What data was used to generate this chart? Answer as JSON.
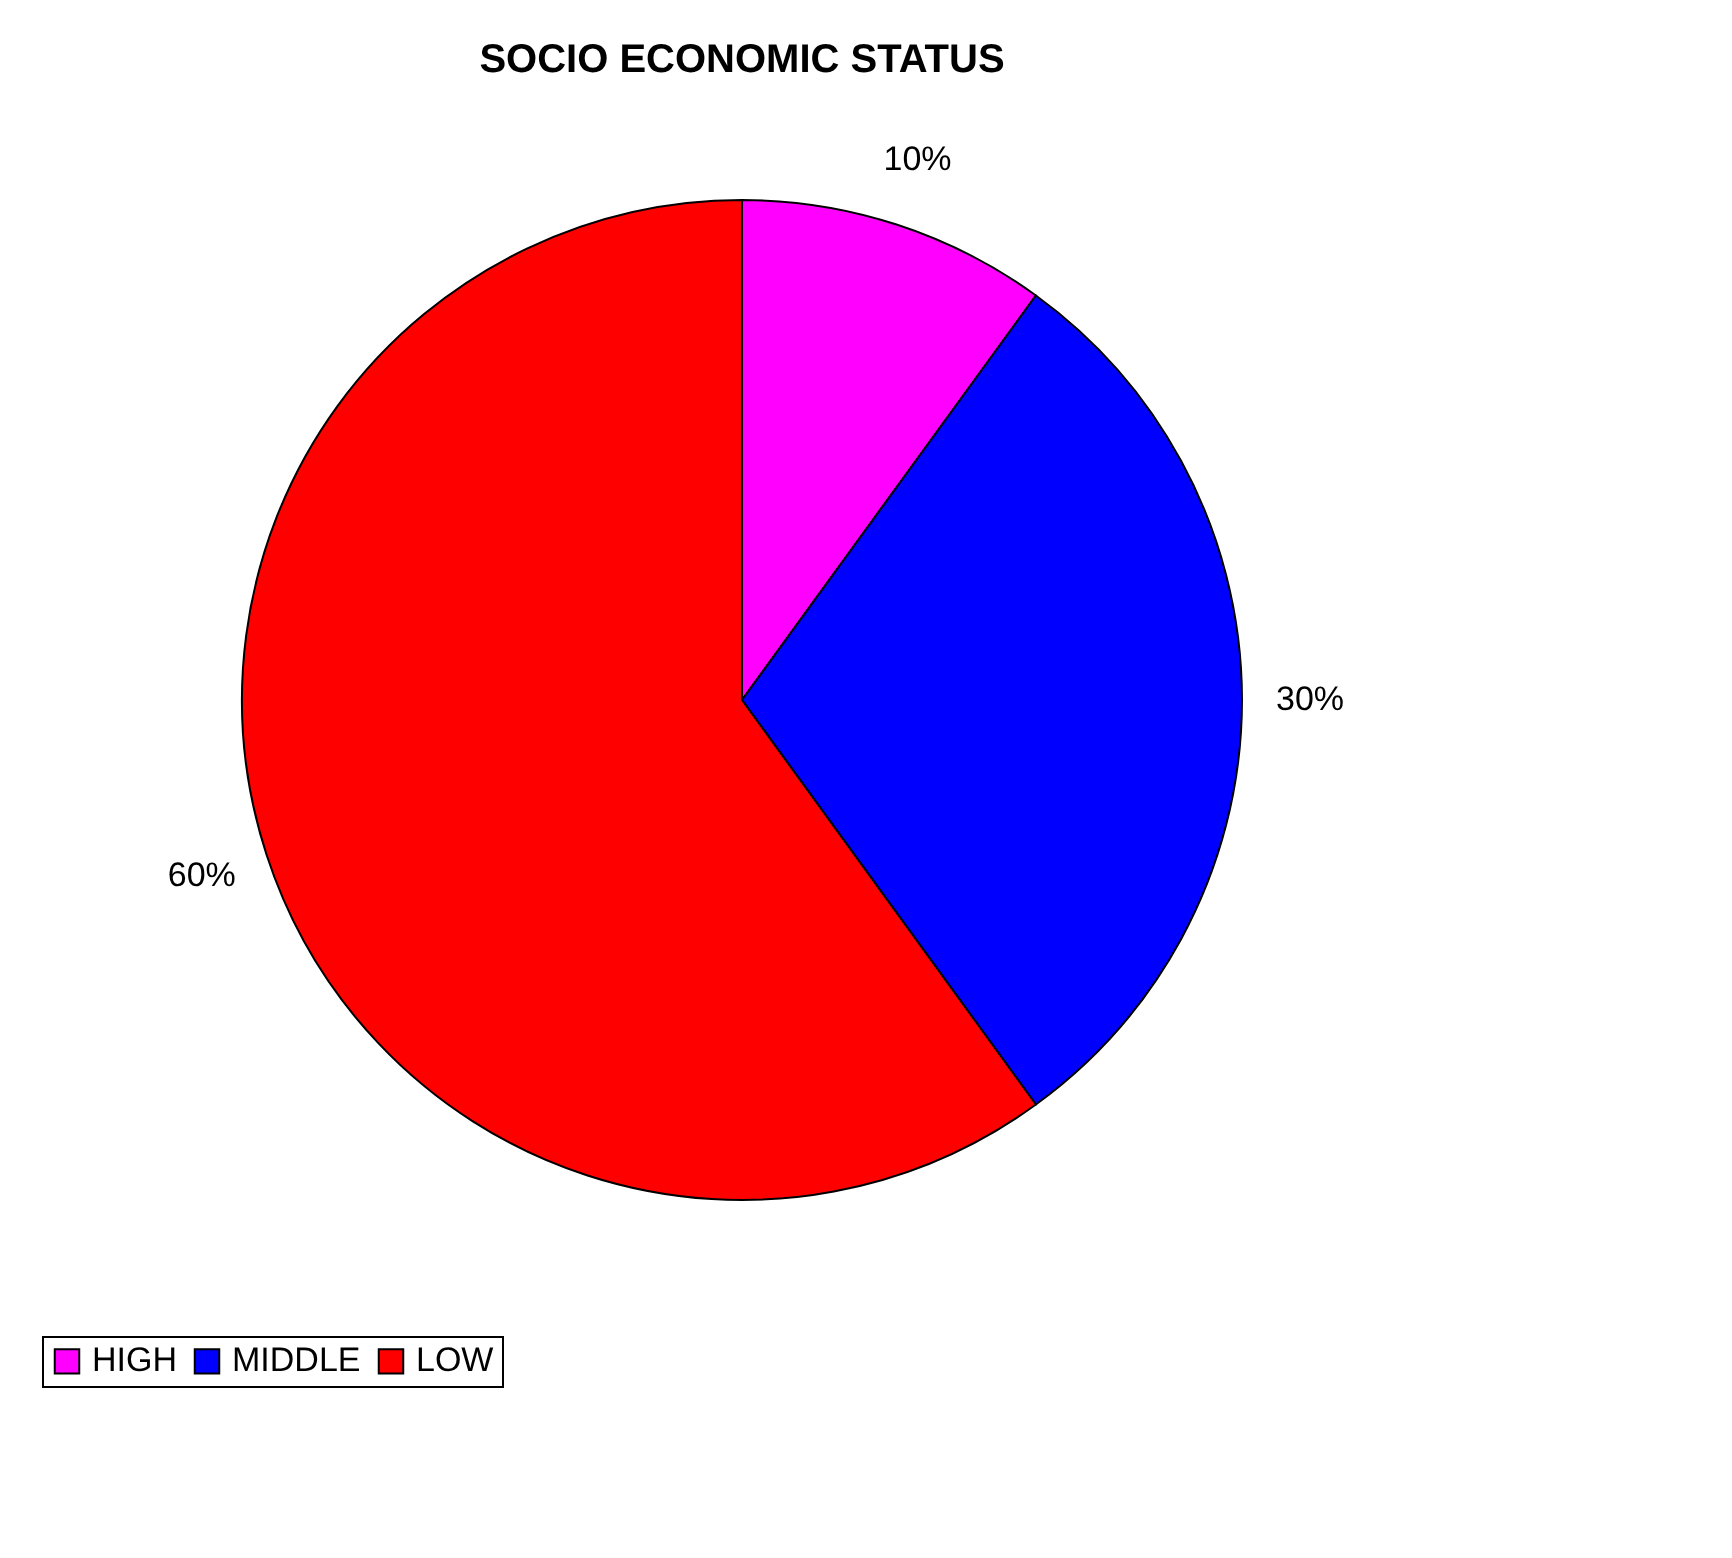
{
  "chart_data": {
    "type": "pie",
    "title": "SOCIO ECONOMIC STATUS",
    "categories": [
      "HIGH",
      "MIDDLE",
      "LOW"
    ],
    "values": [
      10,
      30,
      60
    ],
    "colors": [
      "#ff00ff",
      "#0000ff",
      "#ff0000"
    ],
    "value_labels": [
      "10%",
      "30%",
      "60%"
    ],
    "legend": "bottom"
  }
}
